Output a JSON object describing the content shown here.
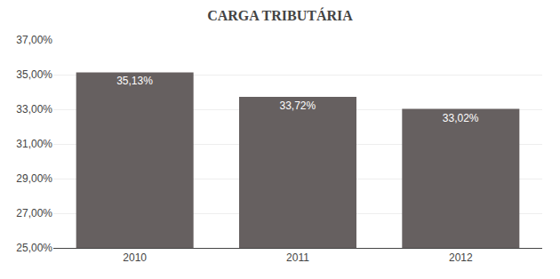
{
  "chart_data": {
    "type": "bar",
    "title": "CARGA TRIBUTÁRIA",
    "categories": [
      "2010",
      "2011",
      "2012"
    ],
    "values": [
      0.3513,
      0.3372,
      0.3302
    ],
    "value_labels": [
      "35,13%",
      "33,72%",
      "33,02%"
    ],
    "data_labels": true,
    "color": "#666060",
    "ylim": [
      0.25,
      0.37
    ],
    "yticks": [
      {
        "value": 0.25,
        "label": "25,00%"
      },
      {
        "value": 0.27,
        "label": "27,00%"
      },
      {
        "value": 0.29,
        "label": "29,00%"
      },
      {
        "value": 0.31,
        "label": "31,00%"
      },
      {
        "value": 0.33,
        "label": "33,00%"
      },
      {
        "value": 0.35,
        "label": "35,00%"
      },
      {
        "value": 0.37,
        "label": "37,00%"
      }
    ],
    "grid": true
  }
}
